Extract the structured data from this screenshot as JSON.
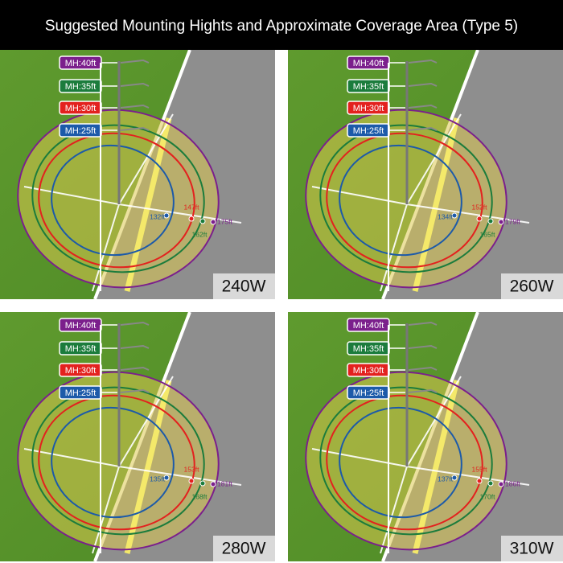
{
  "header": {
    "title": "Suggested Mounting Hights and Approximate Coverage Area (Type 5)"
  },
  "panels": [
    {
      "wattage": "240W",
      "heights": [
        "MH:40ft",
        "MH:35ft",
        "MH:30ft",
        "MH:25ft"
      ],
      "distances": [
        "132ft",
        "147ft",
        "162ft",
        "175ft"
      ]
    },
    {
      "wattage": "260W",
      "heights": [
        "MH:40ft",
        "MH:35ft",
        "MH:30ft",
        "MH:25ft"
      ],
      "distances": [
        "134ft",
        "152ft",
        "165ft",
        "179ft"
      ]
    },
    {
      "wattage": "280W",
      "heights": [
        "MH:40ft",
        "MH:35ft",
        "MH:30ft",
        "MH:25ft"
      ],
      "distances": [
        "135ft",
        "153ft",
        "168ft",
        "181ft"
      ]
    },
    {
      "wattage": "310W",
      "heights": [
        "MH:40ft",
        "MH:35ft",
        "MH:30ft",
        "MH:25ft"
      ],
      "distances": [
        "137ft",
        "155ft",
        "170ft",
        "186ft"
      ]
    }
  ]
}
